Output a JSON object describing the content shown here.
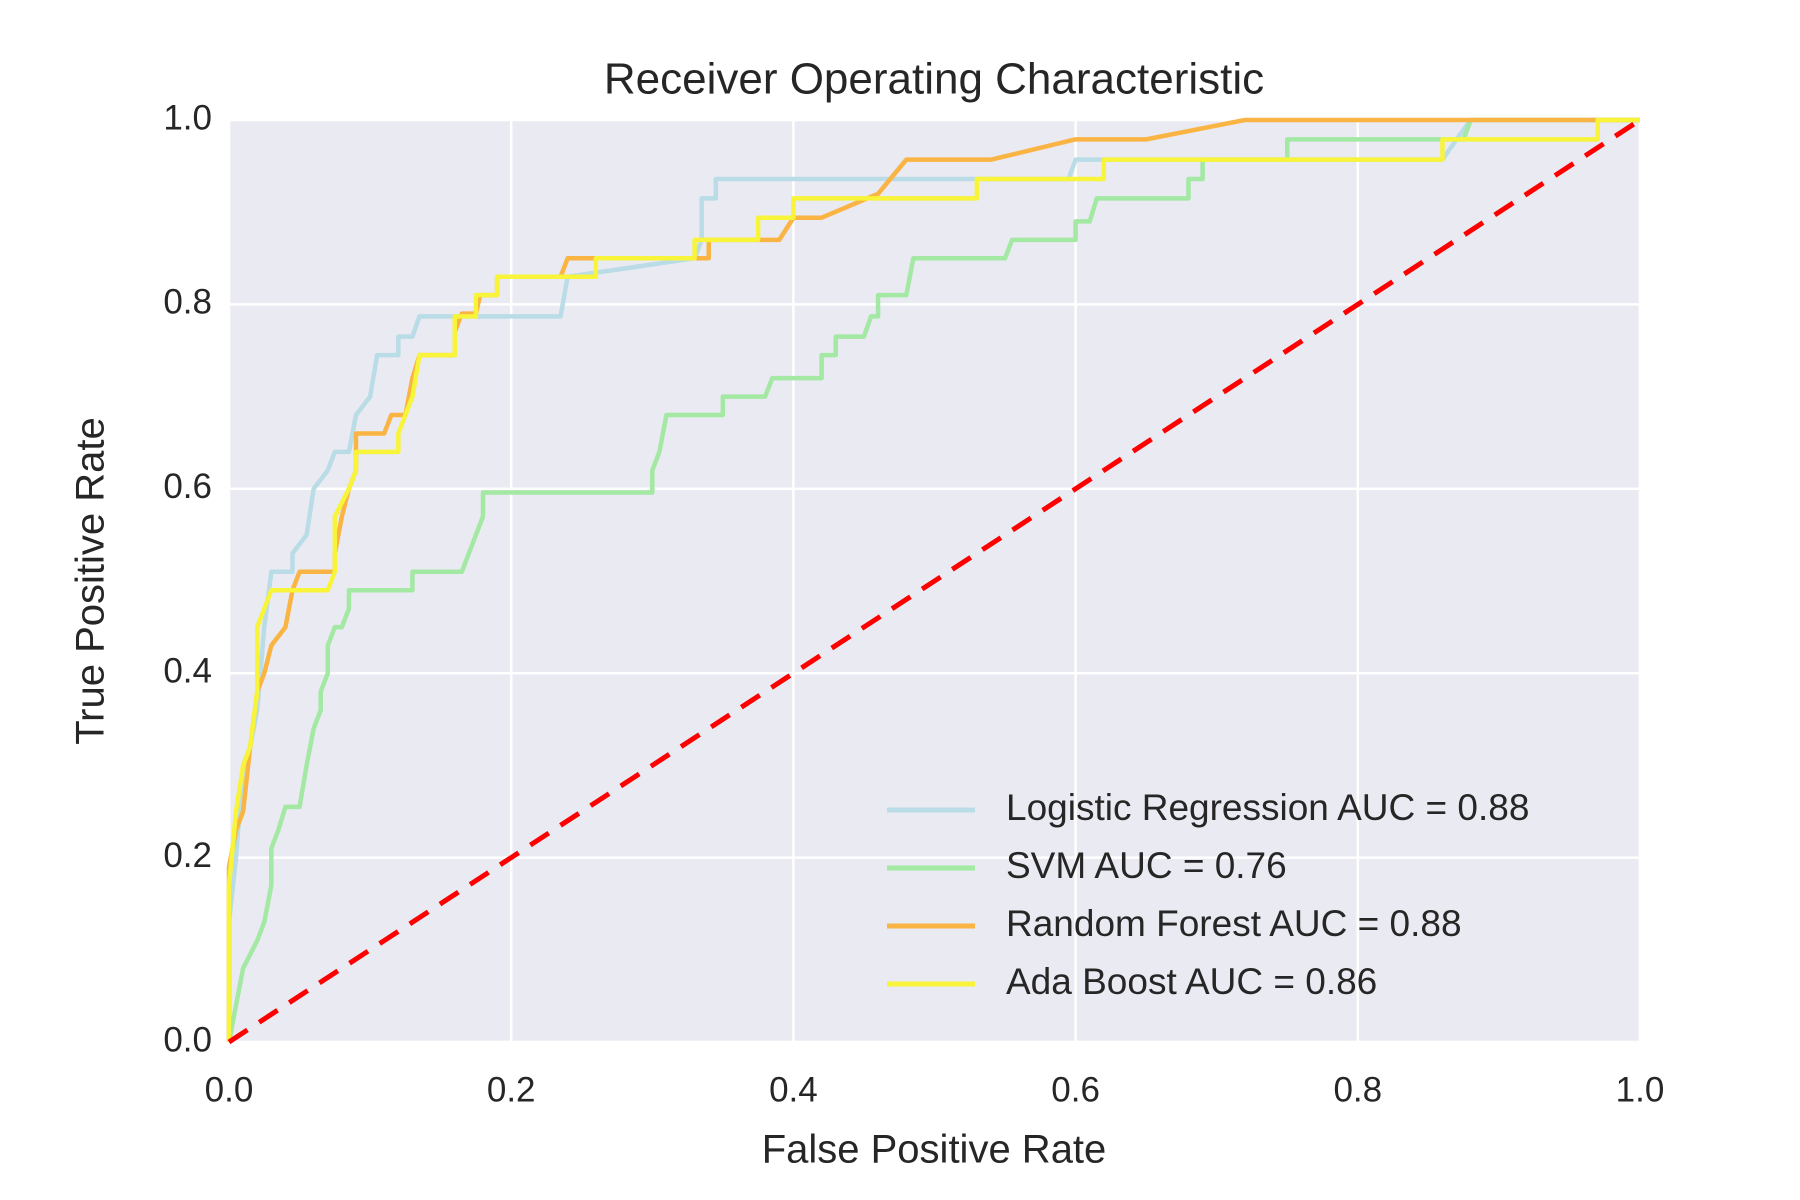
{
  "chart_data": {
    "type": "line",
    "title": "Receiver Operating Characteristic",
    "x_label": "False Positive Rate",
    "y_label": "True Positive Rate",
    "xlim": [
      0,
      1
    ],
    "ylim": [
      0,
      1
    ],
    "xticks": [
      {
        "value": 0,
        "label": "0.0"
      },
      0.2,
      0.4,
      0.6,
      0.8,
      {
        "value": 1,
        "label": "1.0"
      }
    ],
    "yticks": [
      {
        "value": 0,
        "label": "0.0"
      },
      0.2,
      0.4,
      0.6,
      0.8,
      {
        "value": 1,
        "label": "1.0"
      }
    ],
    "grid": true,
    "legend": "lower right",
    "series": [
      {
        "name": "Logistic Regression AUC = 0.88",
        "color": "#b9dce6",
        "x": [
          0,
          0,
          0.005,
          0.01,
          0.015,
          0.02,
          0.025,
          0.03,
          0.045,
          0.045,
          0.055,
          0.06,
          0.07,
          0.075,
          0.085,
          0.09,
          0.1,
          0.105,
          0.12,
          0.12,
          0.13,
          0.135,
          0.235,
          0.24,
          0.33,
          0.335,
          0.335,
          0.345,
          0.345,
          0.595,
          0.6,
          0.86,
          0.87,
          0.88,
          1
        ],
        "values": [
          0,
          0.13,
          0.2,
          0.3,
          0.32,
          0.36,
          0.45,
          0.51,
          0.51,
          0.53,
          0.55,
          0.6,
          0.62,
          0.64,
          0.64,
          0.68,
          0.7,
          0.745,
          0.745,
          0.765,
          0.765,
          0.787,
          0.787,
          0.83,
          0.85,
          0.87,
          0.915,
          0.915,
          0.936,
          0.936,
          0.957,
          0.957,
          0.979,
          1,
          1
        ]
      },
      {
        "name": "SVM AUC = 0.76",
        "color": "#a3e8a3",
        "x": [
          0,
          0.005,
          0.01,
          0.02,
          0.025,
          0.03,
          0.03,
          0.035,
          0.04,
          0.05,
          0.055,
          0.06,
          0.065,
          0.065,
          0.07,
          0.07,
          0.075,
          0.08,
          0.085,
          0.085,
          0.13,
          0.13,
          0.165,
          0.17,
          0.175,
          0.18,
          0.18,
          0.3,
          0.3,
          0.305,
          0.31,
          0.35,
          0.35,
          0.38,
          0.385,
          0.42,
          0.42,
          0.43,
          0.43,
          0.45,
          0.455,
          0.46,
          0.46,
          0.48,
          0.485,
          0.55,
          0.555,
          0.6,
          0.6,
          0.61,
          0.615,
          0.68,
          0.68,
          0.69,
          0.69,
          0.75,
          0.75,
          0.875,
          0.88,
          1
        ],
        "values": [
          0,
          0.04,
          0.08,
          0.11,
          0.13,
          0.17,
          0.21,
          0.23,
          0.255,
          0.255,
          0.3,
          0.34,
          0.36,
          0.38,
          0.4,
          0.43,
          0.45,
          0.45,
          0.47,
          0.49,
          0.49,
          0.51,
          0.51,
          0.53,
          0.55,
          0.57,
          0.596,
          0.596,
          0.62,
          0.64,
          0.68,
          0.68,
          0.7,
          0.7,
          0.72,
          0.72,
          0.745,
          0.745,
          0.765,
          0.765,
          0.787,
          0.787,
          0.81,
          0.81,
          0.85,
          0.85,
          0.87,
          0.87,
          0.89,
          0.89,
          0.915,
          0.915,
          0.936,
          0.936,
          0.957,
          0.957,
          0.979,
          0.979,
          1,
          1
        ]
      },
      {
        "name": "Random Forest AUC = 0.88",
        "color": "#f9b443",
        "x": [
          0,
          0,
          0.005,
          0.01,
          0.015,
          0.02,
          0.025,
          0.03,
          0.04,
          0.045,
          0.05,
          0.075,
          0.075,
          0.08,
          0.085,
          0.09,
          0.09,
          0.11,
          0.115,
          0.125,
          0.13,
          0.135,
          0.16,
          0.16,
          0.165,
          0.175,
          0.178,
          0.19,
          0.19,
          0.235,
          0.24,
          0.34,
          0.34,
          0.39,
          0.4,
          0.42,
          0.46,
          0.48,
          0.54,
          0.6,
          0.65,
          0.72,
          1
        ],
        "values": [
          0,
          0.19,
          0.23,
          0.25,
          0.32,
          0.38,
          0.4,
          0.43,
          0.45,
          0.49,
          0.51,
          0.51,
          0.53,
          0.57,
          0.6,
          0.62,
          0.66,
          0.66,
          0.68,
          0.68,
          0.72,
          0.745,
          0.745,
          0.77,
          0.79,
          0.79,
          0.81,
          0.81,
          0.83,
          0.83,
          0.85,
          0.85,
          0.87,
          0.87,
          0.894,
          0.894,
          0.92,
          0.957,
          0.957,
          0.979,
          0.979,
          1,
          1
        ]
      },
      {
        "name": "Ada Boost AUC = 0.86",
        "color": "#f7f43a",
        "x": [
          0,
          0,
          0.005,
          0.01,
          0.015,
          0.02,
          0.02,
          0.025,
          0.03,
          0.07,
          0.075,
          0.075,
          0.085,
          0.09,
          0.09,
          0.12,
          0.12,
          0.125,
          0.13,
          0.135,
          0.16,
          0.16,
          0.175,
          0.175,
          0.19,
          0.19,
          0.26,
          0.26,
          0.33,
          0.33,
          0.375,
          0.375,
          0.4,
          0.4,
          0.53,
          0.53,
          0.62,
          0.62,
          0.86,
          0.86,
          0.97,
          0.97,
          1
        ],
        "values": [
          0,
          0.17,
          0.25,
          0.3,
          0.32,
          0.38,
          0.45,
          0.47,
          0.49,
          0.49,
          0.51,
          0.57,
          0.6,
          0.62,
          0.64,
          0.64,
          0.66,
          0.68,
          0.7,
          0.745,
          0.745,
          0.787,
          0.787,
          0.81,
          0.81,
          0.83,
          0.83,
          0.85,
          0.85,
          0.87,
          0.87,
          0.894,
          0.894,
          0.915,
          0.915,
          0.936,
          0.936,
          0.957,
          0.957,
          0.979,
          0.979,
          1,
          1
        ]
      }
    ],
    "reference_line": {
      "x": [
        0,
        1
      ],
      "values": [
        0,
        1
      ],
      "color": "#ff0000",
      "dashed": true
    }
  }
}
